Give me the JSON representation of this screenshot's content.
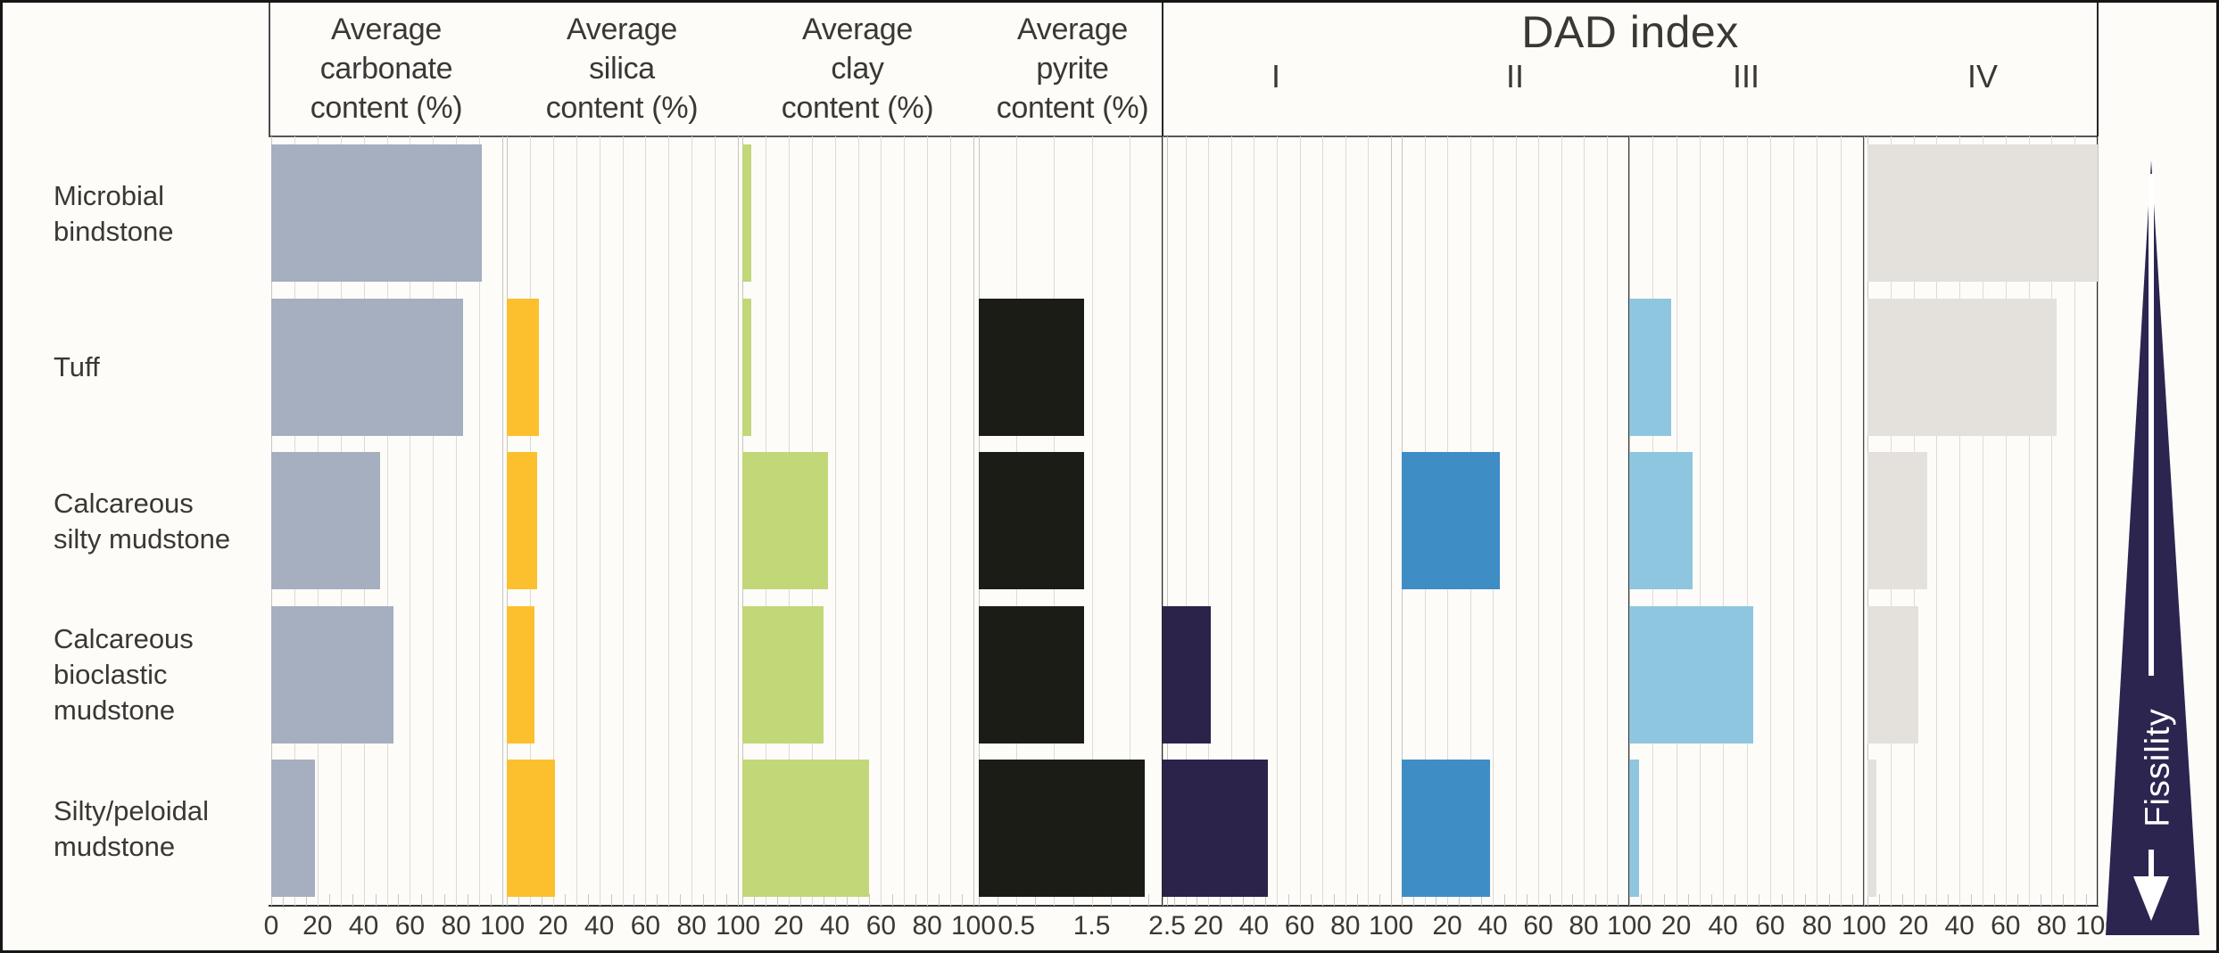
{
  "figure": {
    "row_labels": [
      "Microbial\nbindstone",
      "Tuff",
      "Calcareous\nsilty mudstone",
      "Calcareous\nbioclastic\nmudstone",
      "Silty/peloidal\nmudstone"
    ],
    "dad_index_title": "DAD index",
    "fissility_label": "Fissility",
    "fissility_color": "#2c2550"
  },
  "chart_data": {
    "type": "bar",
    "orientation": "horizontal",
    "grid": "on",
    "categories": [
      "Microbial bindstone",
      "Tuff",
      "Calcareous silty mudstone",
      "Calcareous bioclastic mudstone",
      "Silty/peloidal mudstone"
    ],
    "dad_group_title": "DAD index",
    "right_annotation": {
      "label": "Fissility",
      "direction": "down",
      "meaning": "fissility increases downward"
    },
    "panels": [
      {
        "id": "carbonate",
        "title": "Average\ncarbonate\ncontent (%)",
        "color": "#a5afbf",
        "axis_min": 0,
        "axis_max": 100,
        "grid_step": 10,
        "tick_values": [
          0,
          20,
          40,
          60,
          80,
          100
        ],
        "values": [
          91,
          83,
          47,
          53,
          19
        ]
      },
      {
        "id": "silica",
        "title": "Average\nsilica\ncontent (%)",
        "color": "#fcc02e",
        "axis_min": 0,
        "axis_max": 100,
        "grid_step": 10,
        "tick_values": [
          20,
          40,
          60,
          80,
          100
        ],
        "values": [
          0,
          14,
          13,
          12,
          21
        ]
      },
      {
        "id": "clay",
        "title": "Average\nclay\ncontent (%)",
        "color": "#c1d778",
        "axis_min": 0,
        "axis_max": 100,
        "grid_step": 10,
        "tick_values": [
          20,
          40,
          60,
          80,
          100
        ],
        "values": [
          4,
          4,
          37,
          35,
          55
        ]
      },
      {
        "id": "pyrite",
        "title": "Average\npyrite\ncontent (%)",
        "color": "#1c1c16",
        "axis_min": 0,
        "axis_max": 2.5,
        "grid_step": 0.5,
        "tick_values": [
          0.5,
          1.5,
          2.5
        ],
        "values": [
          0,
          1.4,
          1.4,
          1.4,
          2.2
        ]
      },
      {
        "id": "dad1",
        "title": "I",
        "color": "#2b2349",
        "axis_min": 0,
        "axis_max": 100,
        "grid_step": 10,
        "tick_values": [
          20,
          40,
          60,
          80,
          100
        ],
        "values": [
          0,
          0,
          0,
          21,
          46
        ]
      },
      {
        "id": "dad2",
        "title": "II",
        "color": "#3e8dc5",
        "axis_min": 0,
        "axis_max": 100,
        "grid_step": 10,
        "tick_values": [
          20,
          40,
          60,
          80,
          100
        ],
        "values": [
          0,
          0,
          43,
          0,
          39
        ]
      },
      {
        "id": "dad3",
        "title": "III",
        "color": "#8ec6e0",
        "axis_min": 0,
        "axis_max": 100,
        "grid_step": 10,
        "tick_values": [
          20,
          40,
          60,
          80,
          100
        ],
        "values": [
          0,
          18,
          27,
          53,
          4
        ]
      },
      {
        "id": "dad4",
        "title": "IV",
        "color": "#e4e1dc",
        "axis_min": 0,
        "axis_max": 100,
        "grid_step": 10,
        "tick_values": [
          20,
          40,
          60,
          80,
          100
        ],
        "values": [
          100,
          82,
          26,
          22,
          4
        ]
      }
    ]
  }
}
